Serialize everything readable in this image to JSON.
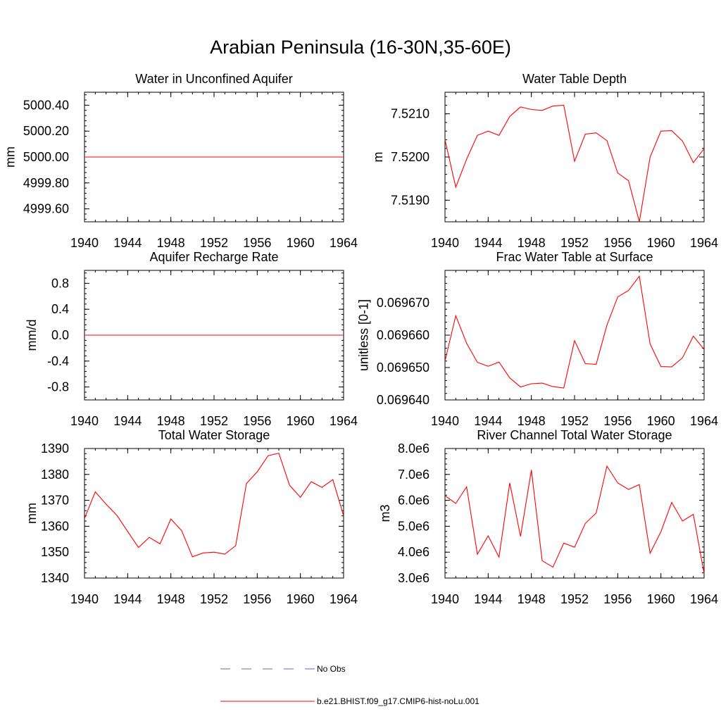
{
  "title": "Arabian Peninsula (16-30N,35-60E)",
  "legend": {
    "placement": "bottom-center",
    "entries": [
      {
        "label": "No Obs",
        "color": "#6666cc",
        "dash": "dashed"
      },
      {
        "label": "b.e21.BHIST.f09_g17.CMIP6-hist-noLu.001",
        "color": "#ff0000",
        "dash": "solid"
      }
    ]
  },
  "chart_data": [
    {
      "type": "line",
      "title": "Water in Unconfined Aquifer",
      "ylabel": "mm",
      "xlim": [
        1940,
        1964
      ],
      "ylim": [
        4999.5,
        5000.5
      ],
      "xticks": [
        1940,
        1944,
        1948,
        1952,
        1956,
        1960,
        1964
      ],
      "yticks": [
        4999.6,
        4999.8,
        5000.0,
        5000.2,
        5000.4
      ],
      "ytick_labels": [
        "4999.60",
        "4999.80",
        "5000.00",
        "5000.20",
        "5000.40"
      ],
      "series": [
        {
          "name": "b.e21.BHIST.f09_g17.CMIP6-hist-noLu.001",
          "color": "#ff0000",
          "x": [
            1940,
            1941,
            1942,
            1943,
            1944,
            1945,
            1946,
            1947,
            1948,
            1949,
            1950,
            1951,
            1952,
            1953,
            1954,
            1955,
            1956,
            1957,
            1958,
            1959,
            1960,
            1961,
            1962,
            1963,
            1964
          ],
          "values": [
            5000,
            5000,
            5000,
            5000,
            5000,
            5000,
            5000,
            5000,
            5000,
            5000,
            5000,
            5000,
            5000,
            5000,
            5000,
            5000,
            5000,
            5000,
            5000,
            5000,
            5000,
            5000,
            5000,
            5000,
            5000
          ]
        }
      ]
    },
    {
      "type": "line",
      "title": "Water Table Depth",
      "ylabel": "m",
      "xlim": [
        1940,
        1964
      ],
      "ylim": [
        7.5185,
        7.5215
      ],
      "xticks": [
        1940,
        1944,
        1948,
        1952,
        1956,
        1960,
        1964
      ],
      "yticks": [
        7.519,
        7.52,
        7.521
      ],
      "ytick_labels": [
        "7.5190",
        "7.5200",
        "7.5210"
      ],
      "series": [
        {
          "name": "b.e21.BHIST.f09_g17.CMIP6-hist-noLu.001",
          "color": "#ff0000",
          "x": [
            1940,
            1941,
            1942,
            1943,
            1944,
            1945,
            1946,
            1947,
            1948,
            1949,
            1950,
            1951,
            1952,
            1953,
            1954,
            1955,
            1956,
            1957,
            1958,
            1959,
            1960,
            1961,
            1962,
            1963,
            1964
          ],
          "values": [
            7.5204,
            7.5193,
            7.51995,
            7.5205,
            7.5206,
            7.5205,
            7.52094,
            7.52116,
            7.5211,
            7.52108,
            7.52118,
            7.5212,
            7.5199,
            7.52053,
            7.52056,
            7.52038,
            7.51963,
            7.51945,
            7.5185,
            7.52,
            7.5206,
            7.52061,
            7.52037,
            7.51987,
            7.52019
          ]
        }
      ]
    },
    {
      "type": "line",
      "title": "Aquifer Recharge Rate",
      "ylabel": "mm/d",
      "xlim": [
        1940,
        1964
      ],
      "ylim": [
        -1.0,
        1.0
      ],
      "xticks": [
        1940,
        1944,
        1948,
        1952,
        1956,
        1960,
        1964
      ],
      "yticks": [
        -0.8,
        -0.4,
        0.0,
        0.4,
        0.8
      ],
      "ytick_labels": [
        "-0.8",
        "-0.4",
        "0.0",
        "0.4",
        "0.8"
      ],
      "series": [
        {
          "name": "b.e21.BHIST.f09_g17.CMIP6-hist-noLu.001",
          "color": "#ff0000",
          "x": [
            1940,
            1941,
            1942,
            1943,
            1944,
            1945,
            1946,
            1947,
            1948,
            1949,
            1950,
            1951,
            1952,
            1953,
            1954,
            1955,
            1956,
            1957,
            1958,
            1959,
            1960,
            1961,
            1962,
            1963,
            1964
          ],
          "values": [
            0,
            0,
            0,
            0,
            0,
            0,
            0,
            0,
            0,
            0,
            0,
            0,
            0,
            0,
            0,
            0,
            0,
            0,
            0,
            0,
            0,
            0,
            0,
            0,
            0
          ]
        }
      ]
    },
    {
      "type": "line",
      "title": "Frac Water Table at Surface",
      "ylabel": "unitless [0-1]",
      "xlim": [
        1940,
        1964
      ],
      "ylim": [
        0.06964,
        0.06968
      ],
      "xticks": [
        1940,
        1944,
        1948,
        1952,
        1956,
        1960,
        1964
      ],
      "yticks": [
        0.06964,
        0.06965,
        0.06966,
        0.06967
      ],
      "ytick_labels": [
        "0.069640",
        "0.069650",
        "0.069660",
        "0.069670"
      ],
      "series": [
        {
          "name": "b.e21.BHIST.f09_g17.CMIP6-hist-noLu.001",
          "color": "#ff0000",
          "x": [
            1940,
            1941,
            1942,
            1943,
            1944,
            1945,
            1946,
            1947,
            1948,
            1949,
            1950,
            1951,
            1952,
            1953,
            1954,
            1955,
            1956,
            1957,
            1958,
            1959,
            1960,
            1961,
            1962,
            1963,
            1964
          ],
          "values": [
            0.069652,
            0.069666,
            0.0696575,
            0.0696516,
            0.0696504,
            0.0696517,
            0.0696468,
            0.069644,
            0.069645,
            0.0696452,
            0.0696441,
            0.0696437,
            0.0696583,
            0.0696512,
            0.069651,
            0.0696631,
            0.0696718,
            0.0696738,
            0.0696782,
            0.0696573,
            0.0696503,
            0.0696502,
            0.069653,
            0.0696597,
            0.0696556
          ]
        }
      ]
    },
    {
      "type": "line",
      "title": "Total Water Storage",
      "ylabel": "mm",
      "xlim": [
        1940,
        1964
      ],
      "ylim": [
        1340,
        1390
      ],
      "xticks": [
        1940,
        1944,
        1948,
        1952,
        1956,
        1960,
        1964
      ],
      "yticks": [
        1340,
        1350,
        1360,
        1370,
        1380,
        1390
      ],
      "ytick_labels": [
        "1340",
        "1350",
        "1360",
        "1370",
        "1380",
        "1390"
      ],
      "series": [
        {
          "name": "b.e21.BHIST.f09_g17.CMIP6-hist-noLu.001",
          "color": "#ff0000",
          "x": [
            1940,
            1941,
            1942,
            1943,
            1944,
            1945,
            1946,
            1947,
            1948,
            1949,
            1950,
            1951,
            1952,
            1953,
            1954,
            1955,
            1956,
            1957,
            1958,
            1959,
            1960,
            1961,
            1962,
            1963,
            1964
          ],
          "values": [
            1363,
            1373.3,
            1368.5,
            1364.2,
            1358,
            1351.8,
            1355.7,
            1353.2,
            1362.8,
            1358.3,
            1348.2,
            1349.7,
            1350,
            1349.2,
            1352.5,
            1376.5,
            1381,
            1387.2,
            1388.2,
            1375.8,
            1371.2,
            1377.2,
            1375,
            1378,
            1364
          ]
        }
      ]
    },
    {
      "type": "line",
      "title": "River Channel Total Water Storage",
      "ylabel": "m3",
      "xlim": [
        1940,
        1964
      ],
      "ylim": [
        3000000,
        8000000
      ],
      "xticks": [
        1940,
        1944,
        1948,
        1952,
        1956,
        1960,
        1964
      ],
      "yticks": [
        3000000,
        4000000,
        5000000,
        6000000,
        7000000,
        8000000
      ],
      "ytick_labels": [
        "3.0e6",
        "4.0e6",
        "5.0e6",
        "6.0e6",
        "7.0e6",
        "8.0e6"
      ],
      "series": [
        {
          "name": "b.e21.BHIST.f09_g17.CMIP6-hist-noLu.001",
          "color": "#ff0000",
          "x": [
            1940,
            1941,
            1942,
            1943,
            1944,
            1945,
            1946,
            1947,
            1948,
            1949,
            1950,
            1951,
            1952,
            1953,
            1954,
            1955,
            1956,
            1957,
            1958,
            1959,
            1960,
            1961,
            1962,
            1963,
            1964
          ],
          "values": [
            6180000,
            5880000,
            6520000,
            3920000,
            4630000,
            3810000,
            6670000,
            4610000,
            7170000,
            3670000,
            3420000,
            4350000,
            4190000,
            5110000,
            5510000,
            7320000,
            6670000,
            6420000,
            6610000,
            3960000,
            4790000,
            5920000,
            5200000,
            5460000,
            3170000
          ]
        }
      ]
    }
  ]
}
